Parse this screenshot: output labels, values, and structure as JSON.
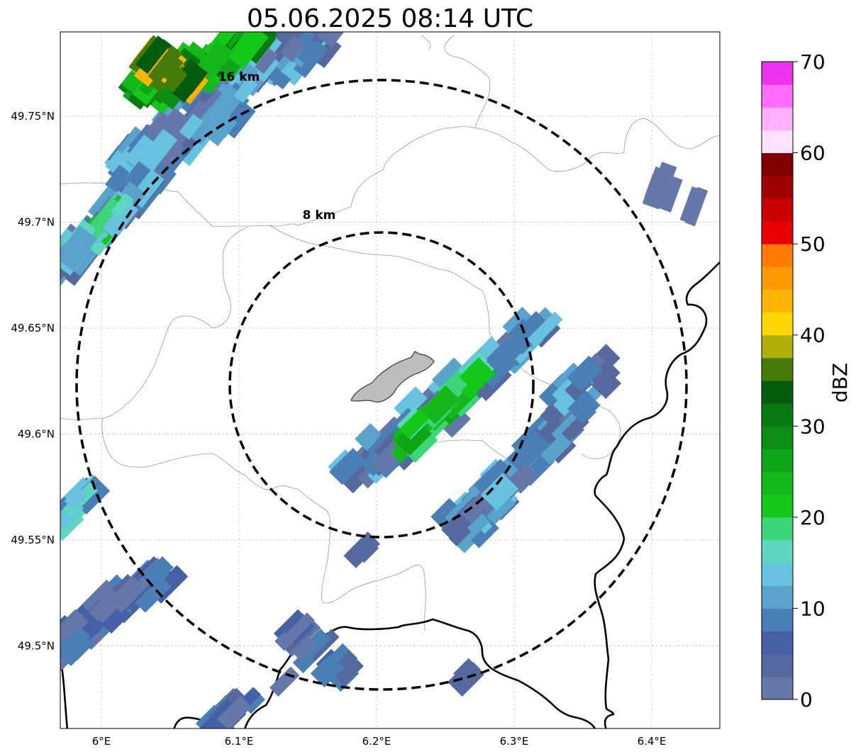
{
  "title": "05.06.2025 08:14 UTC",
  "map": {
    "lon_ticks": [
      {
        "value": 6.0,
        "label": "6°E"
      },
      {
        "value": 6.1,
        "label": "6.1°E"
      },
      {
        "value": 6.2,
        "label": "6.2°E"
      },
      {
        "value": 6.3,
        "label": "6.3°E"
      },
      {
        "value": 6.4,
        "label": "6.4°E"
      }
    ],
    "lat_ticks": [
      {
        "value": 49.75,
        "label": "49.75°N"
      },
      {
        "value": 49.7,
        "label": "49.7°N"
      },
      {
        "value": 49.65,
        "label": "49.65°N"
      },
      {
        "value": 49.6,
        "label": "49.6°N"
      },
      {
        "value": 49.55,
        "label": "49.55°N"
      },
      {
        "value": 49.5,
        "label": "49.5°N"
      }
    ],
    "extent": {
      "lon_min": 5.97,
      "lon_max": 6.45,
      "lat_min": 49.46,
      "lat_max": 49.79
    },
    "center": {
      "lon": 6.2,
      "lat": 49.623
    },
    "gridlines": true,
    "range_rings": [
      {
        "label": "8 km",
        "radius_km": 8
      },
      {
        "label": "16 km",
        "radius_km": 16
      }
    ]
  },
  "colorbar": {
    "label": "dBZ",
    "min": 0,
    "max": 70,
    "ticks": [
      "0",
      "10",
      "20",
      "30",
      "40",
      "50",
      "60",
      "70"
    ],
    "colors": [
      "#6577a8",
      "#56699f",
      "#4660a6",
      "#4a7fb5",
      "#58a2cc",
      "#66c2de",
      "#5fd6c2",
      "#3dd57a",
      "#14c81a",
      "#14b81a",
      "#0fa518",
      "#0c8e14",
      "#087a12",
      "#055c0d",
      "#467a0a",
      "#afb00a",
      "#ffd700",
      "#ffb400",
      "#ff9b00",
      "#ff7a00",
      "#e60000",
      "#c80000",
      "#a00000",
      "#800000",
      "#ffe2ff",
      "#ffb1ff",
      "#ff6cff",
      "#ee32ee"
    ]
  },
  "chart_data": {
    "type": "map",
    "title": "05.06.2025 08:14 UTC",
    "xlabel": "",
    "ylabel": "",
    "xlim": [
      5.97,
      6.45
    ],
    "ylim": [
      49.46,
      49.79
    ],
    "colorbar_label": "dBZ",
    "colorbar_range": [
      0,
      70
    ],
    "range_rings_km": [
      8,
      16
    ],
    "echo_cells": [
      {
        "lon": 6.05,
        "lat": 49.77,
        "dbz": 44,
        "intensity": "max"
      },
      {
        "lon": 6.14,
        "lat": 49.76,
        "dbz": 18
      },
      {
        "lon": 5.99,
        "lat": 49.69,
        "dbz": 22
      },
      {
        "lon": 6.25,
        "lat": 49.62,
        "dbz": 24
      },
      {
        "lon": 6.32,
        "lat": 49.59,
        "dbz": 12
      },
      {
        "lon": 6.03,
        "lat": 49.51,
        "dbz": 10
      },
      {
        "lon": 6.42,
        "lat": 49.71,
        "dbz": 2
      }
    ]
  }
}
